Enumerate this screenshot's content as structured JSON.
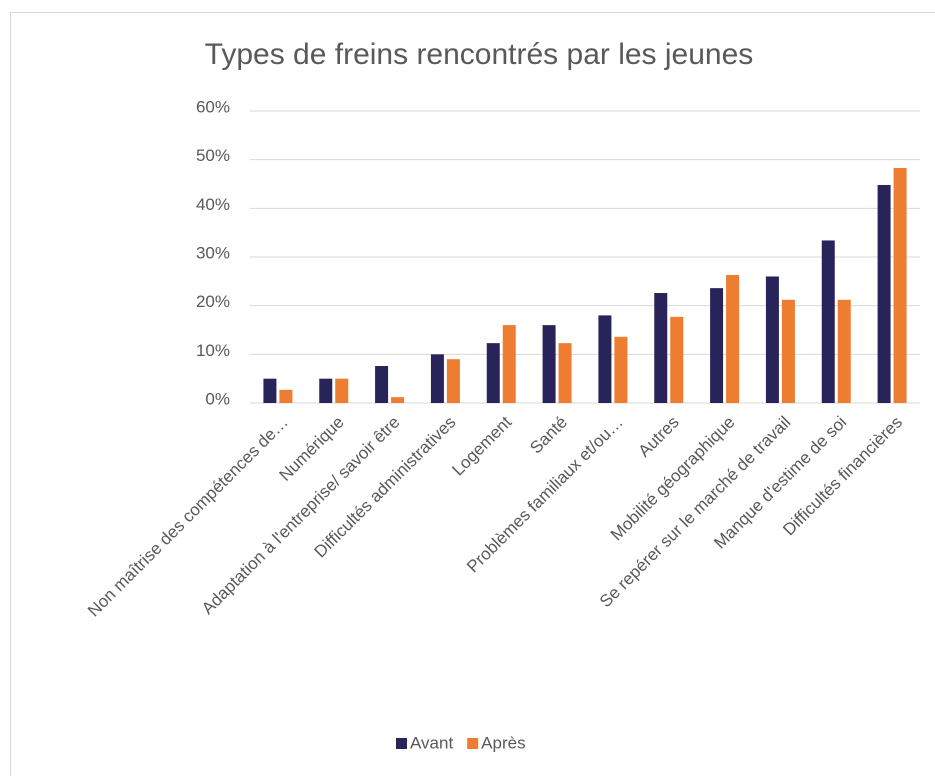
{
  "chart_data": {
    "type": "bar",
    "title": "Types de freins rencontrés par les jeunes",
    "categories": [
      "Non maîtrise des compétences de…",
      "Numérique",
      "Adaptation à l'entreprise/ savoir être",
      "Difficultés administratives",
      "Logement",
      "Santé",
      "Problèmes familiaux et/ou…",
      "Autres",
      "Mobilité géographique",
      "Se repérer sur le marché de travail",
      "Manque d'estime de soi",
      "Difficultés financières"
    ],
    "series": [
      {
        "name": "Avant",
        "color": "#28245a",
        "values": [
          5,
          5,
          7.6,
          10,
          12.3,
          16,
          18,
          22.6,
          23.6,
          26,
          33.4,
          44.8
        ]
      },
      {
        "name": "Après",
        "color": "#ed7d31",
        "values": [
          2.7,
          5,
          1.2,
          9,
          16,
          12.3,
          13.6,
          17.7,
          26.3,
          21.2,
          21.2,
          48.3
        ]
      }
    ],
    "ylim": [
      0,
      60
    ],
    "yticks": [
      {
        "value": 0,
        "label": "0%"
      },
      {
        "value": 10,
        "label": "10%"
      },
      {
        "value": 20,
        "label": "20%"
      },
      {
        "value": 30,
        "label": "30%"
      },
      {
        "value": 40,
        "label": "40%"
      },
      {
        "value": 50,
        "label": "50%"
      },
      {
        "value": 60,
        "label": "60%"
      }
    ],
    "grid": true
  }
}
